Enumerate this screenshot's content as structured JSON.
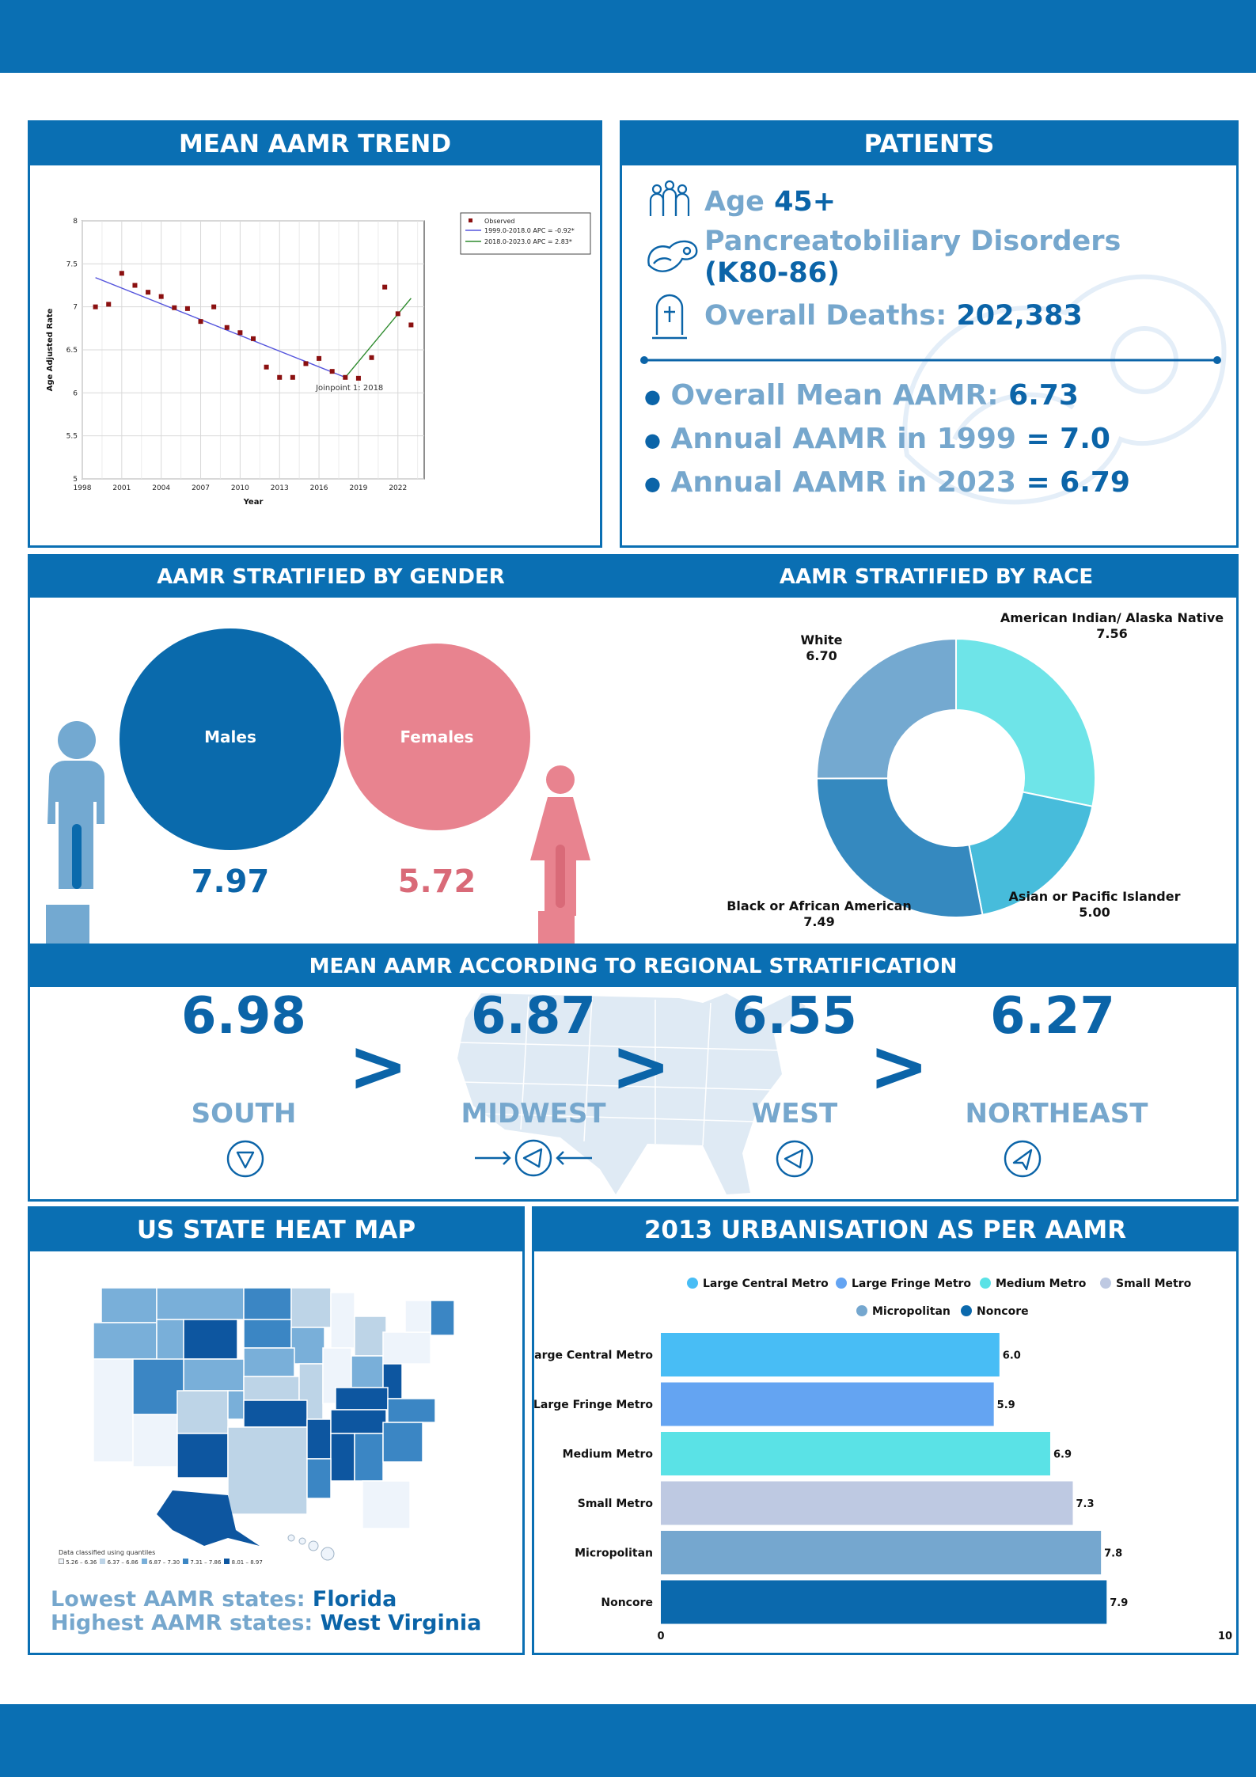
{
  "colors": {
    "brand": "#0a6fb3",
    "dark_text": "#0b64a8",
    "light_text": "#76a7cd",
    "male": "#0a6aac",
    "female": "#e8838f",
    "male_figure": "#73a9d1"
  },
  "trend": {
    "title": "MEAN AAMR TREND",
    "chart_data": {
      "type": "scatter",
      "xlabel": "Year",
      "ylabel": "Age Adjusted Rate",
      "xlim": [
        1998,
        2024
      ],
      "ylim": [
        5,
        8
      ],
      "x_ticks": [
        1998,
        2001,
        2004,
        2007,
        2010,
        2013,
        2016,
        2019,
        2022
      ],
      "y_ticks": [
        5,
        5.5,
        6,
        6.5,
        7,
        7.5,
        8
      ],
      "grid": true,
      "legend_position": "top-right",
      "series": [
        {
          "name": "Observed",
          "color": "#8b1010",
          "x": [
            1999,
            2000,
            2001,
            2002,
            2003,
            2004,
            2005,
            2006,
            2007,
            2008,
            2009,
            2010,
            2011,
            2012,
            2013,
            2014,
            2015,
            2016,
            2017,
            2018,
            2019,
            2020,
            2021,
            2022,
            2023
          ],
          "y": [
            7.0,
            7.03,
            7.39,
            7.25,
            7.17,
            7.12,
            6.99,
            6.98,
            6.83,
            7.0,
            6.76,
            6.7,
            6.63,
            6.3,
            6.18,
            6.18,
            6.34,
            6.4,
            6.25,
            6.18,
            6.17,
            6.41,
            7.23,
            6.92,
            6.79
          ]
        },
        {
          "name": "1999.0-2018.0 APC  =  -0.92*",
          "color": "#5555dd",
          "x": [
            1999,
            2018
          ],
          "y": [
            7.34,
            6.18
          ]
        },
        {
          "name": "2018.0-2023.0 APC  =  2.83*",
          "color": "#2e8b2e",
          "x": [
            2018,
            2023
          ],
          "y": [
            6.18,
            7.1
          ]
        }
      ],
      "annotation": "Joinpoint 1:  2018"
    }
  },
  "patients": {
    "title": "PATIENTS",
    "age_label": "Age ",
    "age_value": "45+",
    "disorder_label": "Pancreatobiliary Disorders",
    "disorder_code": "(K80-86)",
    "deaths_label": "Overall Deaths: ",
    "deaths_value": "202,383",
    "bullets": [
      {
        "label": "Overall Mean AAMR: ",
        "value": "6.73"
      },
      {
        "label": "Annual AAMR in 1999 ",
        "value": "= 7.0"
      },
      {
        "label": "Annual AAMR in 2023 ",
        "value": "= 6.79"
      }
    ],
    "icons": [
      "family-icon",
      "pancreas-icon",
      "gravestone-icon"
    ]
  },
  "gender": {
    "title": "AAMR STRATIFIED BY GENDER",
    "males_label": "Males",
    "males_value": "7.97",
    "females_label": "Females",
    "females_value": "5.72"
  },
  "race": {
    "title": "AAMR STRATIFIED BY RACE",
    "chart_data": {
      "type": "pie",
      "slices": [
        {
          "label": "American Indian/ Alaska Native",
          "value": 7.56,
          "color": "#6ee4e8"
        },
        {
          "label": "Asian or Pacific Islander",
          "value": 5.0,
          "color": "#47bcdb"
        },
        {
          "label": "Black or African American",
          "value": 7.49,
          "color": "#3589bf"
        },
        {
          "label": "White",
          "value": 6.7,
          "color": "#74a9d0"
        }
      ]
    },
    "labels": {
      "aian_name": "American Indian/ Alaska Native",
      "aian_value": "7.56",
      "api_name": "Asian or Pacific Islander",
      "api_value": "5.00",
      "black_name": "Black or African American",
      "black_value": "7.49",
      "white_name": "White",
      "white_value": "6.70"
    }
  },
  "regional": {
    "title": "MEAN AAMR ACCORDING TO REGIONAL STRATIFICATION",
    "regions": [
      {
        "value": "6.98",
        "name": "SOUTH"
      },
      {
        "value": "6.87",
        "name": "MIDWEST"
      },
      {
        "value": "6.55",
        "name": "WEST"
      },
      {
        "value": "6.27",
        "name": "NORTHEAST"
      }
    ],
    "separator": ">"
  },
  "heatmap": {
    "title": "US STATE HEAT MAP",
    "lowest_label": "Lowest AAMR states: ",
    "lowest_value": "Florida",
    "highest_label": "Highest AAMR states: ",
    "highest_value": "West Virginia",
    "legend_title": "Data classified using quantiles",
    "legend": [
      "5.26 – 6.36",
      "6.37 – 6.86",
      "6.87 – 7.30",
      "7.31 – 7.86",
      "8.01 – 8.97"
    ],
    "palette": [
      "#eef4fb",
      "#bdd4e7",
      "#79afd9",
      "#3b86c4",
      "#0d56a0"
    ]
  },
  "urban": {
    "title": "2013 URBANISATION AS PER AAMR",
    "chart_data": {
      "type": "bar",
      "orientation": "horizontal",
      "categories": [
        "Large Central Metro",
        "Large Fringe Metro",
        "Medium Metro",
        "Small Metro",
        "Micropolitan",
        "Noncore"
      ],
      "values": [
        6.0,
        5.9,
        6.9,
        7.3,
        7.8,
        7.9
      ],
      "colors": [
        "#48bdf5",
        "#64a4f2",
        "#5ae2e6",
        "#bec9e2",
        "#75a7cf",
        "#0b69ad"
      ],
      "xlim": [
        0,
        10
      ],
      "x_ticks": [
        "0",
        "10"
      ],
      "legend_position": "top"
    }
  }
}
